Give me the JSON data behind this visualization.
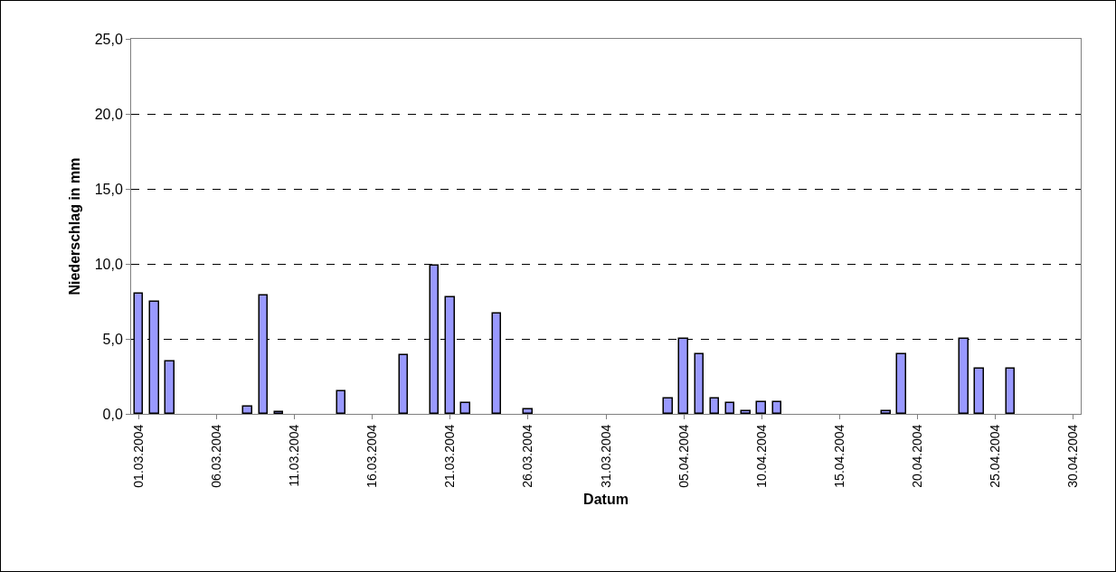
{
  "chart_data": {
    "type": "bar",
    "xlabel": "Datum",
    "ylabel": "Niederschlag in mm",
    "categories": [
      "01.03.2004",
      null,
      null,
      null,
      null,
      "06.03.2004",
      null,
      null,
      null,
      null,
      "11.03.2004",
      null,
      null,
      null,
      null,
      "16.03.2004",
      null,
      null,
      null,
      null,
      "21.03.2004",
      null,
      null,
      null,
      null,
      "26.03.2004",
      null,
      null,
      null,
      null,
      "31.03.2004",
      null,
      null,
      null,
      null,
      "05.04.2004",
      null,
      null,
      null,
      null,
      "10.04.2004",
      null,
      null,
      null,
      null,
      "15.04.2004",
      null,
      null,
      null,
      null,
      "20.04.2004",
      null,
      null,
      null,
      null,
      "25.04.2004",
      null,
      null,
      null,
      null,
      "30.04.2004"
    ],
    "values": [
      8.0,
      7.5,
      3.5,
      0,
      0,
      0,
      0,
      0.5,
      7.9,
      0.1,
      0,
      0,
      0,
      1.5,
      0,
      0,
      0,
      3.9,
      0,
      9.9,
      7.8,
      0.7,
      0,
      6.7,
      0,
      0.3,
      0,
      0,
      0,
      0,
      0,
      0,
      0,
      0,
      1.0,
      5.0,
      4.0,
      1.0,
      0.7,
      0.2,
      0.8,
      0.8,
      0,
      0,
      0,
      0,
      0,
      0,
      0.2,
      4.0,
      0,
      0,
      0,
      5.0,
      3.0,
      0,
      3.0,
      0,
      0,
      0,
      0
    ],
    "color": "#9999ff",
    "ylim": [
      0,
      25
    ],
    "yticks": [
      {
        "value": 0,
        "label": "0,0"
      },
      {
        "value": 5,
        "label": "5,0"
      },
      {
        "value": 10,
        "label": "10,0"
      },
      {
        "value": 15,
        "label": "15,0"
      },
      {
        "value": 20,
        "label": "20,0"
      },
      {
        "value": 25,
        "label": "25,0"
      }
    ],
    "grid": "y",
    "line_style": "dashed"
  }
}
